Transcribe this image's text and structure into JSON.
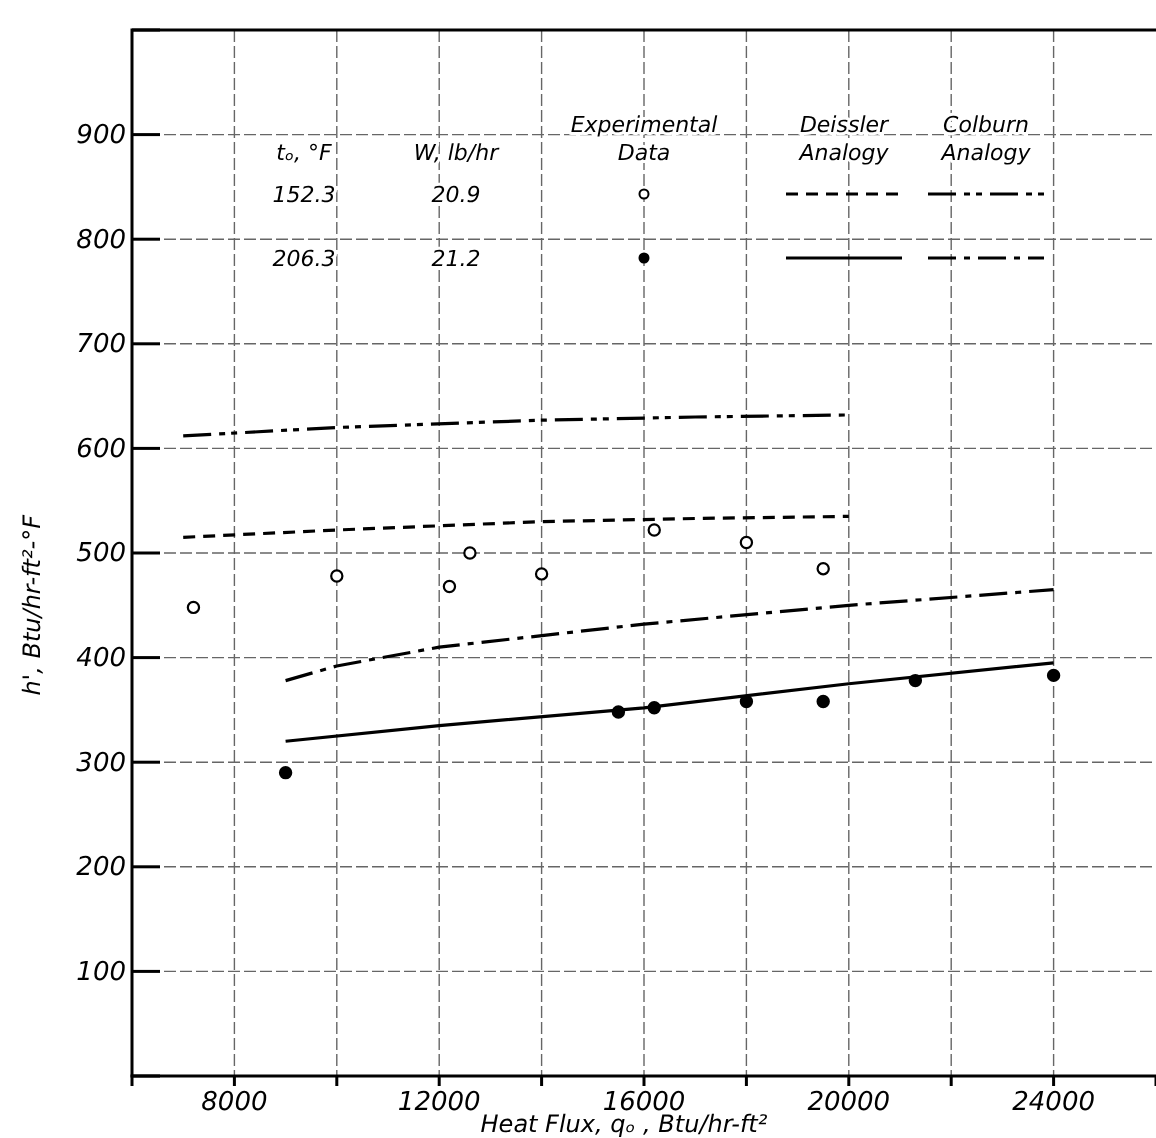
{
  "chart_data": {
    "type": "scatter",
    "xlabel": "Heat Flux, qₒ , Btu/hr-ft²",
    "ylabel": "h', Btu/hr-ft²-°F",
    "xlim": [
      6000,
      26000
    ],
    "ylim": [
      0,
      1000
    ],
    "xticks": [
      {
        "value": 8000,
        "label": "8000"
      },
      {
        "value": 10000,
        "label": null
      },
      {
        "value": 12000,
        "label": "12000"
      },
      {
        "value": 14000,
        "label": null
      },
      {
        "value": 16000,
        "label": "16000"
      },
      {
        "value": 18000,
        "label": null
      },
      {
        "value": 20000,
        "label": "20000"
      },
      {
        "value": 22000,
        "label": null
      },
      {
        "value": 24000,
        "label": "24000"
      }
    ],
    "yticks": [
      100,
      200,
      300,
      400,
      500,
      600,
      700,
      800,
      900
    ],
    "grid": true,
    "annotations": [
      "tₒ, °F",
      "W, lb/hr",
      "Experimental Data",
      "Deissler Analogy",
      "Colburn Analogy",
      "152.3",
      "20.9",
      "206.3",
      "21.2"
    ],
    "series": [
      {
        "marker": "circle",
        "color": "#ffffff",
        "x": [
          7200,
          10000,
          12200,
          12600,
          14000,
          16200,
          18000,
          19500
        ],
        "values": [
          448,
          478,
          468,
          500,
          480,
          522,
          510,
          485
        ]
      },
      {
        "marker": "circle",
        "color": "#000000",
        "x": [
          9000,
          15500,
          16200,
          18000,
          19500,
          21300,
          24000
        ],
        "values": [
          290,
          348,
          352,
          358,
          358,
          378,
          383
        ]
      },
      {
        "type": "line",
        "line_style": "dashed",
        "color": "#000000",
        "x": [
          7000,
          10000,
          14000,
          17000,
          20000
        ],
        "values": [
          515,
          522,
          530,
          533,
          535
        ]
      },
      {
        "type": "line",
        "line_style": "dashdotdot",
        "color": "#000000",
        "x": [
          7000,
          10000,
          14000,
          17000,
          20000
        ],
        "values": [
          612,
          620,
          627,
          630,
          632
        ]
      },
      {
        "type": "line",
        "line_style": "solid",
        "color": "#000000",
        "x": [
          9000,
          12000,
          16000,
          20000,
          24000
        ],
        "values": [
          320,
          335,
          352,
          375,
          395
        ]
      },
      {
        "type": "line",
        "line_style": "dashdot",
        "color": "#000000",
        "x": [
          9000,
          10000,
          12000,
          16000,
          20000,
          24000
        ],
        "values": [
          378,
          392,
          410,
          432,
          450,
          465
        ]
      }
    ]
  }
}
